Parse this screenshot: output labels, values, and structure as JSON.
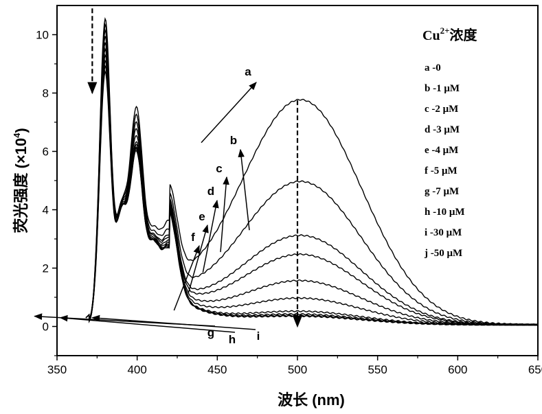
{
  "chart_data": {
    "type": "line",
    "xlabel": "波长 (nm)",
    "ylabel": "荧光强度 (×10",
    "ylabel_exponent": "4",
    "ylabel_suffix": ")",
    "xlim": [
      350,
      650
    ],
    "ylim": [
      -1,
      11
    ],
    "xticks": [
      350,
      400,
      450,
      500,
      550,
      600,
      650
    ],
    "yticks": [
      0,
      2,
      4,
      6,
      8,
      10
    ],
    "grid": false,
    "legend": {
      "title": "Cu",
      "title_superscript": "2+",
      "title_suffix": "浓度",
      "placement": "top-right",
      "entries": [
        "a -0",
        "b -1 μM",
        "c -2 μM",
        "d -3 μM",
        "e -4 μM",
        "f -5 μM",
        "g -7 μM",
        "h -10 μM",
        "i -30 μM",
        "j -50 μM"
      ]
    },
    "series": [
      {
        "name": "a",
        "peak500": 7.7,
        "peak380": 10.4,
        "peak400": 7.1
      },
      {
        "name": "b",
        "peak500": 4.9,
        "peak380": 10.2,
        "peak400": 6.9
      },
      {
        "name": "c",
        "peak500": 3.05,
        "peak380": 10.0,
        "peak400": 6.7
      },
      {
        "name": "d",
        "peak500": 2.4,
        "peak380": 9.8,
        "peak400": 6.5
      },
      {
        "name": "e",
        "peak500": 1.5,
        "peak380": 9.6,
        "peak400": 6.3
      },
      {
        "name": "f",
        "peak500": 0.9,
        "peak380": 9.4,
        "peak400": 6.1
      },
      {
        "name": "g",
        "peak500": 0.45,
        "peak380": 9.2,
        "peak400": 6.0
      },
      {
        "name": "h",
        "peak500": 0.35,
        "peak380": 9.0,
        "peak400": 5.9
      },
      {
        "name": "i",
        "peak500": 0.3,
        "peak380": 8.8,
        "peak400": 5.85
      },
      {
        "name": "j",
        "peak500": 0.28,
        "peak380": 8.6,
        "peak400": 5.8
      }
    ],
    "annotations": {
      "curve_labels": [
        "a",
        "b",
        "c",
        "d",
        "e",
        "f",
        "g",
        "h",
        "i"
      ],
      "dashed_arrows": [
        {
          "x": 372,
          "from": 10.9,
          "to": 8.0
        },
        {
          "x": 500,
          "from": 7.75,
          "to": 0.0
        }
      ]
    }
  }
}
